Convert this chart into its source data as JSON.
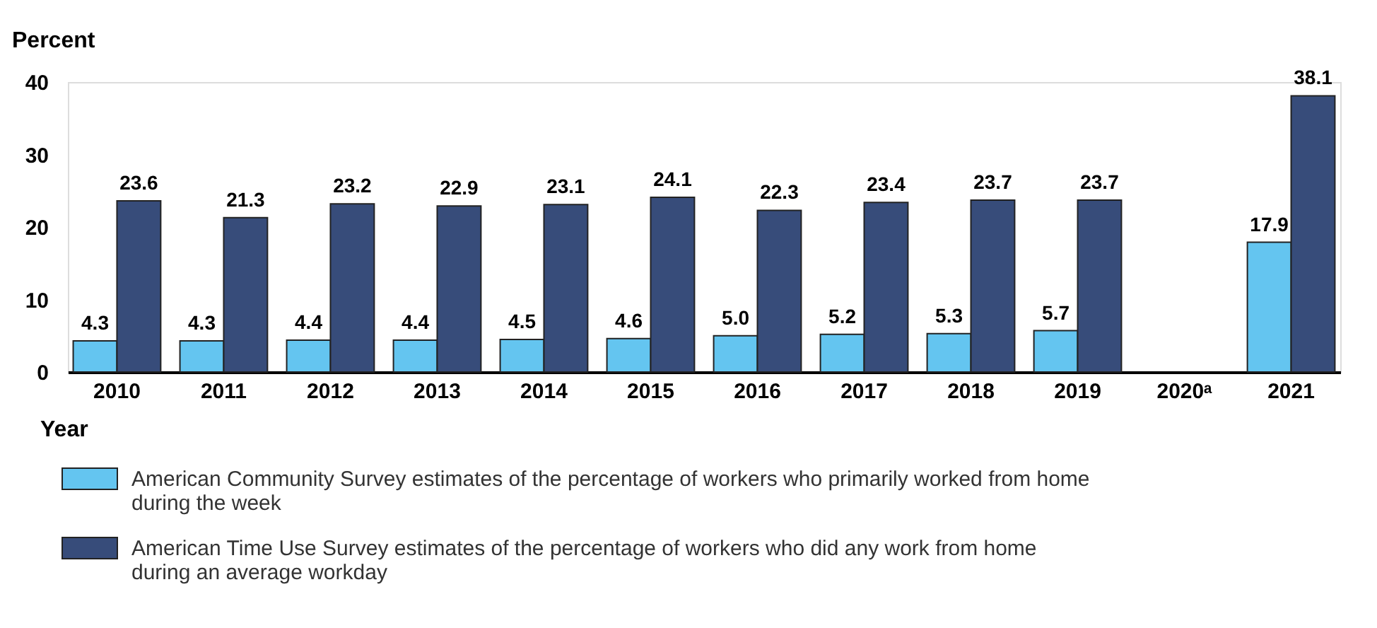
{
  "chart_data": {
    "type": "bar",
    "categories": [
      "2010",
      "2011",
      "2012",
      "2013",
      "2014",
      "2015",
      "2016",
      "2017",
      "2018",
      "2019",
      "2020ᵃ",
      "2021"
    ],
    "series": [
      {
        "name": "American Community Survey estimates of the percentage of workers who primarily worked from home during the week",
        "color": "#64c5f0",
        "values": [
          4.3,
          4.3,
          4.4,
          4.4,
          4.5,
          4.6,
          5.0,
          5.2,
          5.3,
          5.7,
          null,
          17.9
        ],
        "value_labels": [
          "4.3",
          "4.3",
          "4.4",
          "4.4",
          "4.5",
          "4.6",
          "5.0",
          "5.2",
          "5.3",
          "5.7",
          null,
          "17.9"
        ]
      },
      {
        "name": "American Time Use Survey estimates of the percentage of workers who did any work from home during an average workday",
        "color": "#374c7a",
        "values": [
          23.6,
          21.3,
          23.2,
          22.9,
          23.1,
          24.1,
          22.3,
          23.4,
          23.7,
          23.7,
          null,
          38.1
        ],
        "value_labels": [
          "23.6",
          "21.3",
          "23.2",
          "22.9",
          "23.1",
          "24.1",
          "22.3",
          "23.4",
          "23.7",
          "23.7",
          null,
          "38.1"
        ]
      }
    ],
    "xlabel": "Year",
    "ylabel": "Percent",
    "ylim": [
      0,
      40
    ],
    "yticks": [
      0,
      10,
      20,
      30,
      40
    ],
    "grid": false,
    "legend": "bottom"
  }
}
